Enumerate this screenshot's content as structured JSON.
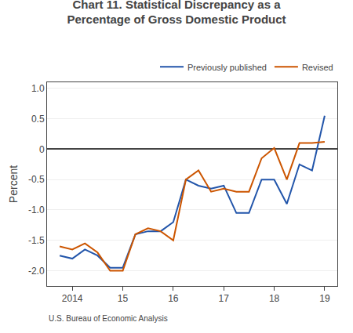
{
  "chart_data": {
    "type": "line",
    "title": "Chart 11. Statistical Discrepancy as a\nPercentage of Gross Domestic Product",
    "y_label": "Percent",
    "annotations": [
      "U.S. Bureau of Economic Analysis"
    ],
    "x": [
      2013.75,
      2014.0,
      2014.25,
      2014.5,
      2014.75,
      2015.0,
      2015.25,
      2015.5,
      2015.75,
      2016.0,
      2016.25,
      2016.5,
      2016.75,
      2017.0,
      2017.25,
      2017.5,
      2017.75,
      2018.0,
      2018.25,
      2018.5,
      2018.75,
      2019.0
    ],
    "series": [
      {
        "name": "Previously published",
        "color": "#2255AA",
        "values": [
          -1.75,
          -1.8,
          -1.65,
          -1.75,
          -1.95,
          -1.95,
          -1.4,
          -1.35,
          -1.35,
          -1.2,
          -0.5,
          -0.6,
          -0.65,
          -0.6,
          -1.05,
          -1.05,
          -0.5,
          -0.5,
          -0.9,
          -0.25,
          -0.35,
          0.55
        ]
      },
      {
        "name": "Revised",
        "color": "#CC5500",
        "values": [
          -1.6,
          -1.65,
          -1.55,
          -1.7,
          -2.0,
          -2.0,
          -1.4,
          -1.3,
          -1.35,
          -1.5,
          -0.5,
          -0.35,
          -0.7,
          -0.65,
          -0.7,
          -0.7,
          -0.15,
          0.02,
          -0.5,
          0.1,
          0.1,
          0.12
        ]
      }
    ],
    "xlim": [
      2013.5,
      2019.25
    ],
    "xticks": [
      2014,
      {
        "value": 2015,
        "label": "15"
      },
      {
        "value": 2016,
        "label": "16"
      },
      {
        "value": 2017,
        "label": "17"
      },
      {
        "value": 2018,
        "label": "18"
      },
      {
        "value": 2019,
        "label": "19"
      }
    ],
    "ylim": [
      -2.25,
      1.1
    ],
    "yticks": [
      {
        "value": -2.0,
        "label": "-2.0"
      },
      -1.5,
      {
        "value": -1.0,
        "label": "-1.0"
      },
      -0.5,
      0,
      0.5,
      {
        "value": 1.0,
        "label": "1.0"
      }
    ],
    "grid": true,
    "legend": "upper right"
  }
}
